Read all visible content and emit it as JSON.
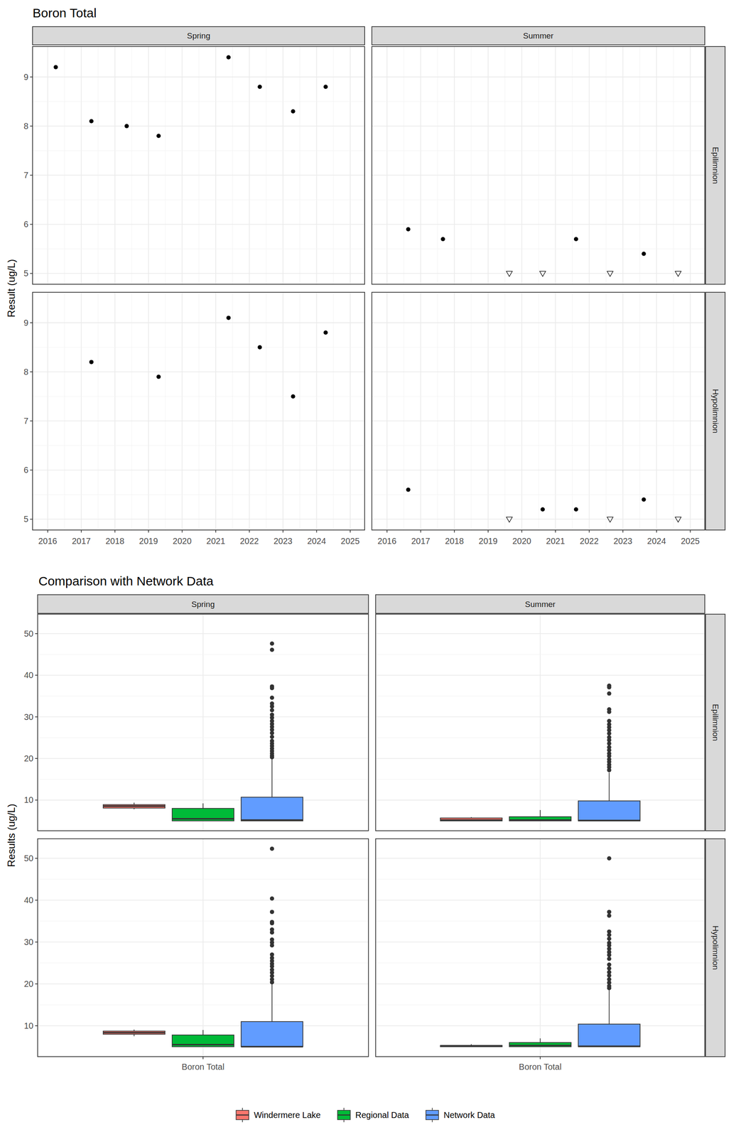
{
  "chart_data": [
    {
      "type": "scatter",
      "title": "Boron Total",
      "y_label": "Result (ug/L)",
      "columns": [
        "Spring",
        "Summer"
      ],
      "xlim": [
        2015.55,
        2025.43
      ],
      "xticks": [
        2016,
        2017,
        2018,
        2019,
        2020,
        2021,
        2022,
        2023,
        2024,
        2025
      ],
      "ylim": [
        4.78,
        9.62
      ],
      "yticks": [
        5,
        6,
        7,
        8,
        9
      ],
      "grid": true,
      "rows": [
        {
          "label": "Epilimnion",
          "panels": [
            {
              "series": [
                {
                  "marker": "circle",
                  "color": "#000000",
                  "x": [
                    2016.24,
                    2017.3,
                    2018.35,
                    2019.3,
                    2021.38,
                    2022.31,
                    2023.3,
                    2024.27
                  ],
                  "values": [
                    9.2,
                    8.1,
                    8.0,
                    7.8,
                    9.4,
                    8.8,
                    8.3,
                    8.8
                  ]
                }
              ]
            },
            {
              "series": [
                {
                  "marker": "circle",
                  "color": "#000000",
                  "x": [
                    2016.63,
                    2017.66,
                    2021.61,
                    2023.62
                  ],
                  "values": [
                    5.9,
                    5.7,
                    5.7,
                    5.4
                  ]
                },
                {
                  "marker": "triangle-down-open",
                  "color": "#000000",
                  "x": [
                    2019.63,
                    2020.62,
                    2022.62,
                    2024.64
                  ],
                  "values": [
                    5,
                    5,
                    5,
                    5
                  ]
                }
              ]
            }
          ]
        },
        {
          "label": "Hypolimnion",
          "panels": [
            {
              "series": [
                {
                  "marker": "circle",
                  "color": "#000000",
                  "x": [
                    2017.3,
                    2019.3,
                    2021.38,
                    2022.31,
                    2023.3,
                    2024.27
                  ],
                  "values": [
                    8.2,
                    7.9,
                    9.1,
                    8.5,
                    7.5,
                    8.8
                  ]
                }
              ]
            },
            {
              "series": [
                {
                  "marker": "circle",
                  "color": "#000000",
                  "x": [
                    2016.63,
                    2020.62,
                    2021.61,
                    2023.62
                  ],
                  "values": [
                    5.6,
                    5.2,
                    5.2,
                    5.4
                  ]
                },
                {
                  "marker": "triangle-down-open",
                  "color": "#000000",
                  "x": [
                    2019.63,
                    2022.62,
                    2024.64
                  ],
                  "values": [
                    5,
                    5,
                    5
                  ]
                }
              ]
            }
          ]
        }
      ]
    },
    {
      "type": "box",
      "title": "Comparison with Network Data",
      "y_label": "Results (ug/L)",
      "categories": [
        "Boron Total"
      ],
      "columns": [
        "Spring",
        "Summer"
      ],
      "ylim": [
        2.63,
        54.67
      ],
      "yticks": [
        10,
        20,
        30,
        40,
        50
      ],
      "grid": true,
      "legend": "bottom",
      "series": [
        {
          "name": "Windermere Lake",
          "color": "#F8766D"
        },
        {
          "name": "Regional Data",
          "color": "#00BA38"
        },
        {
          "name": "Network Data",
          "color": "#619CFF"
        }
      ],
      "rows": [
        {
          "label": "Epilimnion",
          "panels": [
            {
              "boxes": [
                {
                  "whisker_low": 7.8,
                  "q1": 8.08,
                  "median": 8.55,
                  "q3": 8.9,
                  "whisker_high": 9.4,
                  "outliers": []
                },
                {
                  "whisker_low": 5.0,
                  "q1": 5.0,
                  "median": 5.5,
                  "q3": 8.0,
                  "whisker_high": 9.2,
                  "outliers": []
                },
                {
                  "whisker_low": 5.0,
                  "q1": 5.0,
                  "median": 5.2,
                  "q3": 10.7,
                  "whisker_high": 19.9,
                  "outliers": [
                    47.6,
                    46.1,
                    37.3,
                    36.9,
                    34.6,
                    33.2,
                    32.5,
                    31.6,
                    30.5,
                    29.8,
                    29.0,
                    28.3,
                    27.6,
                    26.9,
                    26.1,
                    25.2,
                    24.2,
                    23.6,
                    23.0,
                    22.4,
                    21.8,
                    21.2,
                    20.7,
                    20.3
                  ]
                }
              ]
            },
            {
              "boxes": [
                {
                  "whisker_low": 5.0,
                  "q1": 5.0,
                  "median": 5.2,
                  "q3": 5.7,
                  "whisker_high": 5.9,
                  "outliers": []
                },
                {
                  "whisker_low": 5.0,
                  "q1": 5.0,
                  "median": 5.2,
                  "q3": 6.0,
                  "whisker_high": 7.6,
                  "outliers": []
                },
                {
                  "whisker_low": 5.0,
                  "q1": 5.0,
                  "median": 5.1,
                  "q3": 9.8,
                  "whisker_high": 16.6,
                  "outliers": [
                    37.5,
                    37.1,
                    35.6,
                    31.8,
                    31.2,
                    29.0,
                    28.2,
                    27.5,
                    26.8,
                    26.0,
                    25.1,
                    24.4,
                    23.6,
                    22.7,
                    22.0,
                    21.2,
                    20.6,
                    19.8,
                    19.2,
                    18.5,
                    17.9,
                    17.2
                  ]
                }
              ]
            }
          ]
        },
        {
          "label": "Hypolimnion",
          "panels": [
            {
              "boxes": [
                {
                  "whisker_low": 7.5,
                  "q1": 7.98,
                  "median": 8.35,
                  "q3": 8.73,
                  "whisker_high": 9.1,
                  "outliers": []
                },
                {
                  "whisker_low": 5.0,
                  "q1": 5.0,
                  "median": 5.5,
                  "q3": 7.8,
                  "whisker_high": 9.0,
                  "outliers": []
                },
                {
                  "whisker_low": 5.0,
                  "q1": 5.0,
                  "median": 5.0,
                  "q3": 11.0,
                  "whisker_high": 20.0,
                  "outliers": [
                    52.3,
                    40.4,
                    37.2,
                    34.8,
                    34.5,
                    33.0,
                    32.3,
                    30.6,
                    29.9,
                    29.2,
                    27.0,
                    26.2,
                    25.5,
                    24.8,
                    24.2,
                    23.4,
                    22.7,
                    21.9,
                    21.1,
                    20.4
                  ]
                }
              ]
            },
            {
              "boxes": [
                {
                  "whisker_low": 5.0,
                  "q1": 5.0,
                  "median": 5.2,
                  "q3": 5.3,
                  "whisker_high": 5.6,
                  "outliers": []
                },
                {
                  "whisker_low": 5.0,
                  "q1": 5.0,
                  "median": 5.3,
                  "q3": 6.0,
                  "whisker_high": 7.0,
                  "outliers": []
                },
                {
                  "whisker_low": 5.0,
                  "q1": 5.0,
                  "median": 5.1,
                  "q3": 10.4,
                  "whisker_high": 18.5,
                  "outliers": [
                    50.0,
                    37.2,
                    36.3,
                    32.5,
                    31.7,
                    30.8,
                    29.8,
                    29.2,
                    28.4,
                    27.6,
                    26.9,
                    26.0,
                    24.6,
                    23.7,
                    22.8,
                    22.0,
                    21.1,
                    20.3,
                    19.5,
                    19.0
                  ]
                }
              ]
            }
          ]
        }
      ]
    }
  ]
}
